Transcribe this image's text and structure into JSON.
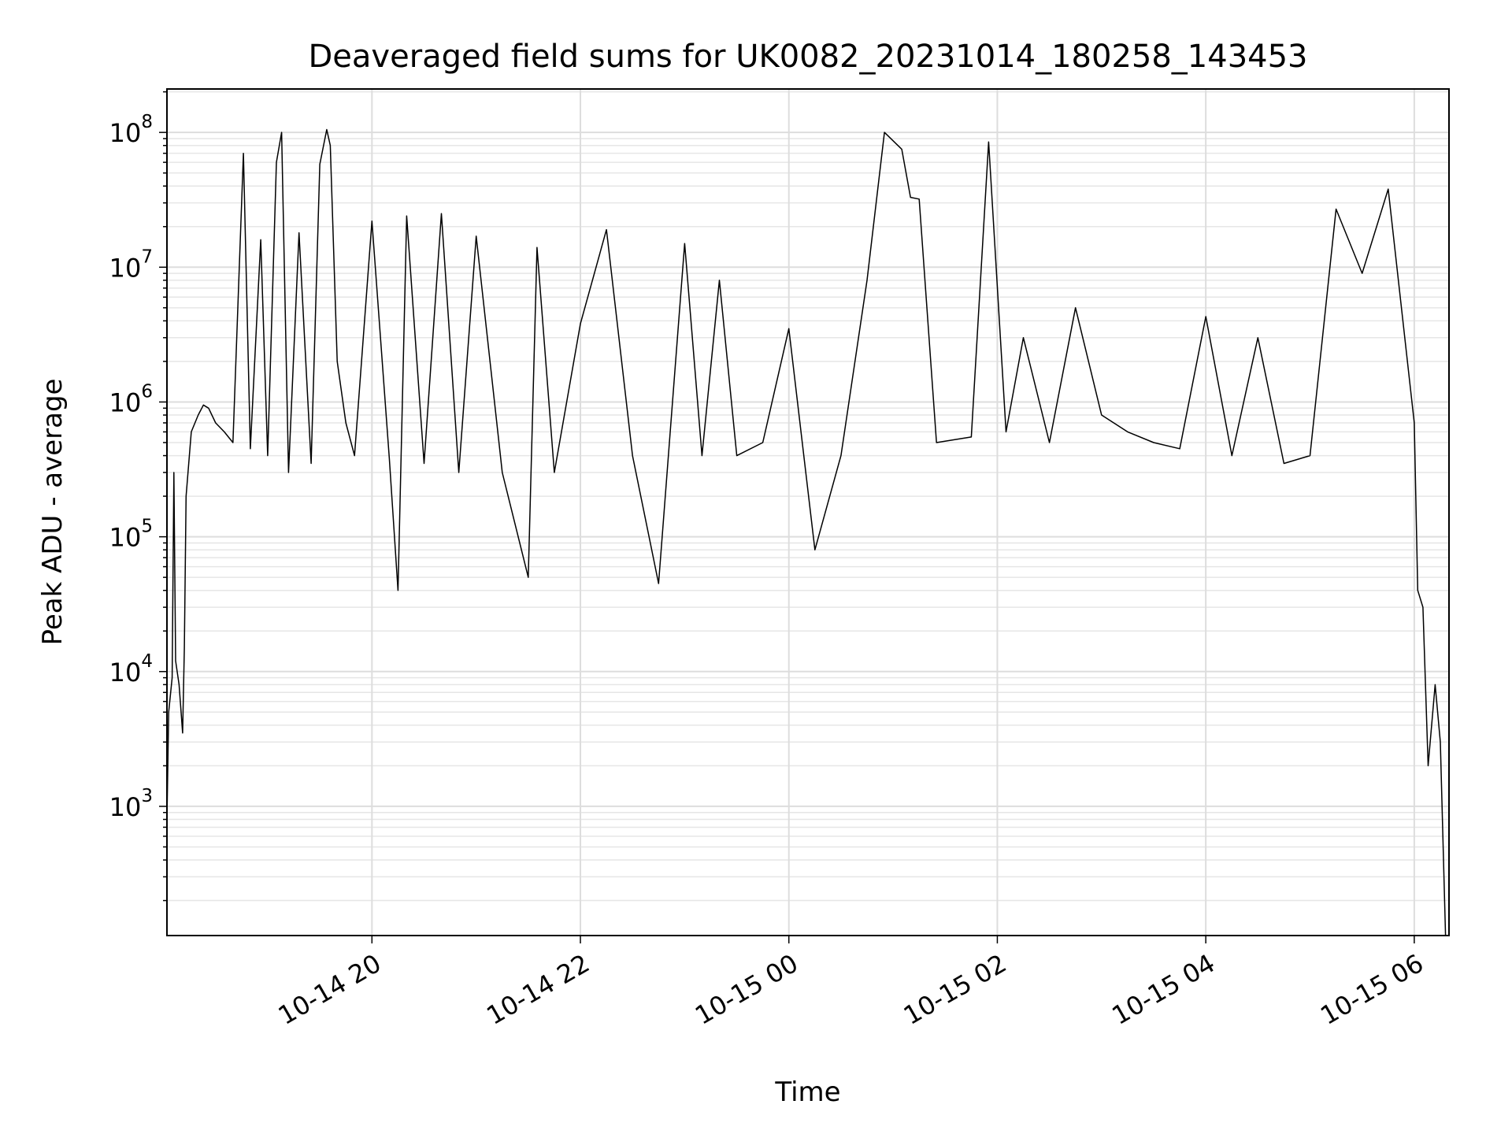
{
  "chart_data": {
    "type": "line",
    "title": "Deaveraged field sums for UK0082_20231014_180258_143453",
    "xlabel": "Time",
    "ylabel": "Peak ADU - average",
    "yscale": "log",
    "ylim": [
      110,
      210000000
    ],
    "xlim": [
      "2023-10-14 18:02",
      "2023-10-15 06:20"
    ],
    "grid": true,
    "line_color": "#000000",
    "x_ticks": [
      {
        "value": "2023-10-14 20:00",
        "label": "10-14 20"
      },
      {
        "value": "2023-10-14 22:00",
        "label": "10-14 22"
      },
      {
        "value": "2023-10-15 00:00",
        "label": "10-15 00"
      },
      {
        "value": "2023-10-15 02:00",
        "label": "10-15 02"
      },
      {
        "value": "2023-10-15 04:00",
        "label": "10-15 04"
      },
      {
        "value": "2023-10-15 06:00",
        "label": "10-15 06"
      }
    ],
    "y_ticks": [
      {
        "value": 1000,
        "base": "10",
        "exp": "3"
      },
      {
        "value": 10000,
        "base": "10",
        "exp": "4"
      },
      {
        "value": 100000,
        "base": "10",
        "exp": "5"
      },
      {
        "value": 1000000,
        "base": "10",
        "exp": "6"
      },
      {
        "value": 10000000,
        "base": "10",
        "exp": "7"
      },
      {
        "value": 100000000,
        "base": "10",
        "exp": "8"
      }
    ],
    "series": [
      {
        "points": [
          [
            "2023-10-14 18:02",
            800
          ],
          [
            "2023-10-14 18:03",
            5000
          ],
          [
            "2023-10-14 18:05",
            9000
          ],
          [
            "2023-10-14 18:06",
            300000
          ],
          [
            "2023-10-14 18:07",
            12000
          ],
          [
            "2023-10-14 18:09",
            8000
          ],
          [
            "2023-10-14 18:11",
            3500
          ],
          [
            "2023-10-14 18:12",
            15000
          ],
          [
            "2023-10-14 18:13",
            200000
          ],
          [
            "2023-10-14 18:16",
            600000
          ],
          [
            "2023-10-14 18:20",
            800000
          ],
          [
            "2023-10-14 18:23",
            950000
          ],
          [
            "2023-10-14 18:26",
            900000
          ],
          [
            "2023-10-14 18:30",
            700000
          ],
          [
            "2023-10-14 18:35",
            600000
          ],
          [
            "2023-10-14 18:40",
            500000
          ],
          [
            "2023-10-14 18:46",
            70000000
          ],
          [
            "2023-10-14 18:50",
            450000
          ],
          [
            "2023-10-14 18:56",
            16000000
          ],
          [
            "2023-10-14 19:00",
            400000
          ],
          [
            "2023-10-14 19:05",
            60000000
          ],
          [
            "2023-10-14 19:08",
            100000000
          ],
          [
            "2023-10-14 19:12",
            300000
          ],
          [
            "2023-10-14 19:18",
            18000000
          ],
          [
            "2023-10-14 19:25",
            350000
          ],
          [
            "2023-10-14 19:30",
            58000000
          ],
          [
            "2023-10-14 19:34",
            105000000
          ],
          [
            "2023-10-14 19:36",
            80000000
          ],
          [
            "2023-10-14 19:40",
            2000000
          ],
          [
            "2023-10-14 19:45",
            700000
          ],
          [
            "2023-10-14 19:50",
            400000
          ],
          [
            "2023-10-14 20:00",
            22000000
          ],
          [
            "2023-10-14 20:10",
            380000
          ],
          [
            "2023-10-14 20:15",
            40000
          ],
          [
            "2023-10-14 20:20",
            24000000
          ],
          [
            "2023-10-14 20:30",
            350000
          ],
          [
            "2023-10-14 20:40",
            25000000
          ],
          [
            "2023-10-14 20:50",
            300000
          ],
          [
            "2023-10-14 21:00",
            17000000
          ],
          [
            "2023-10-14 21:15",
            300000
          ],
          [
            "2023-10-14 21:30",
            50000
          ],
          [
            "2023-10-14 21:35",
            14000000
          ],
          [
            "2023-10-14 21:45",
            300000
          ],
          [
            "2023-10-14 22:00",
            3800000
          ],
          [
            "2023-10-14 22:15",
            19000000
          ],
          [
            "2023-10-14 22:30",
            400000
          ],
          [
            "2023-10-14 22:45",
            45000
          ],
          [
            "2023-10-14 23:00",
            15000000
          ],
          [
            "2023-10-14 23:10",
            400000
          ],
          [
            "2023-10-14 23:20",
            8000000
          ],
          [
            "2023-10-14 23:30",
            400000
          ],
          [
            "2023-10-14 23:45",
            500000
          ],
          [
            "2023-10-15 00:00",
            3500000
          ],
          [
            "2023-10-15 00:15",
            80000
          ],
          [
            "2023-10-15 00:30",
            400000
          ],
          [
            "2023-10-15 00:45",
            8000000
          ],
          [
            "2023-10-15 00:55",
            100000000
          ],
          [
            "2023-10-15 01:05",
            75000000
          ],
          [
            "2023-10-15 01:10",
            33000000
          ],
          [
            "2023-10-15 01:15",
            32000000
          ],
          [
            "2023-10-15 01:25",
            500000
          ],
          [
            "2023-10-15 01:45",
            550000
          ],
          [
            "2023-10-15 01:55",
            85000000
          ],
          [
            "2023-10-15 02:05",
            600000
          ],
          [
            "2023-10-15 02:15",
            3000000
          ],
          [
            "2023-10-15 02:30",
            500000
          ],
          [
            "2023-10-15 02:45",
            5000000
          ],
          [
            "2023-10-15 03:00",
            800000
          ],
          [
            "2023-10-15 03:15",
            600000
          ],
          [
            "2023-10-15 03:30",
            500000
          ],
          [
            "2023-10-15 03:45",
            450000
          ],
          [
            "2023-10-15 04:00",
            4300000
          ],
          [
            "2023-10-15 04:15",
            400000
          ],
          [
            "2023-10-15 04:30",
            3000000
          ],
          [
            "2023-10-15 04:45",
            350000
          ],
          [
            "2023-10-15 05:00",
            400000
          ],
          [
            "2023-10-15 05:15",
            27000000
          ],
          [
            "2023-10-15 05:30",
            9000000
          ],
          [
            "2023-10-15 05:45",
            38000000
          ],
          [
            "2023-10-15 06:00",
            700000
          ],
          [
            "2023-10-15 06:02",
            40000
          ],
          [
            "2023-10-15 06:05",
            30000
          ],
          [
            "2023-10-15 06:08",
            2000
          ],
          [
            "2023-10-15 06:12",
            8000
          ],
          [
            "2023-10-15 06:15",
            3000
          ],
          [
            "2023-10-15 06:18",
            110
          ]
        ]
      }
    ]
  }
}
